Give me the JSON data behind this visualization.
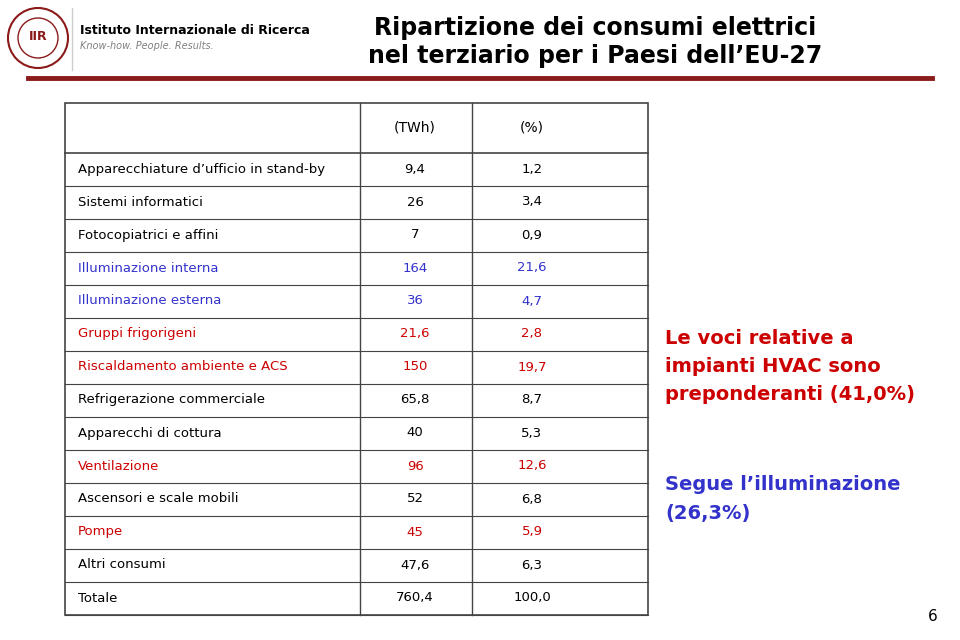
{
  "title_line1": "Ripartizione dei consumi elettrici",
  "title_line2": "nel terziario per i Paesi dell’EU-27",
  "header_col2": "(TWh)",
  "header_col3": "(%)",
  "rows": [
    {
      "label": "Apparecchiature d’ufficio in stand-by",
      "twh": "9,4",
      "pct": "1,2",
      "color": "black"
    },
    {
      "label": "Sistemi informatici",
      "twh": "26",
      "pct": "3,4",
      "color": "black"
    },
    {
      "label": "Fotocopiatrici e affini",
      "twh": "7",
      "pct": "0,9",
      "color": "black"
    },
    {
      "label": "Illuminazione interna",
      "twh": "164",
      "pct": "21,6",
      "color": "#3333cc"
    },
    {
      "label": "Illuminazione esterna",
      "twh": "36",
      "pct": "4,7",
      "color": "#3333cc"
    },
    {
      "label": "Gruppi frigorigeni",
      "twh": "21,6",
      "pct": "2,8",
      "color": "#cc0000"
    },
    {
      "label": "Riscaldamento ambiente e ACS",
      "twh": "150",
      "pct": "19,7",
      "color": "#cc0000"
    },
    {
      "label": "Refrigerazione commerciale",
      "twh": "65,8",
      "pct": "8,7",
      "color": "black"
    },
    {
      "label": "Apparecchi di cottura",
      "twh": "40",
      "pct": "5,3",
      "color": "black"
    },
    {
      "label": "Ventilazione",
      "twh": "96",
      "pct": "12,6",
      "color": "#cc0000"
    },
    {
      "label": "Ascensori e scale mobili",
      "twh": "52",
      "pct": "6,8",
      "color": "black"
    },
    {
      "label": "Pompe",
      "twh": "45",
      "pct": "5,9",
      "color": "#cc0000"
    },
    {
      "label": "Altri consumi",
      "twh": "47,6",
      "pct": "6,3",
      "color": "black"
    },
    {
      "label": "Totale",
      "twh": "760,4",
      "pct": "100,0",
      "color": "black"
    }
  ],
  "annotation_red": "Le voci relative a\nimpianti HVAC sono\npreponderanti (41,0%)",
  "annotation_blue": "Segue l’illuminazione\n(26,3%)",
  "annotation_red_color": "#cc0000",
  "annotation_blue_color": "#3333cc",
  "bg_color": "#ffffff",
  "header_line_color": "#8b1a1a",
  "table_border_color": "#444444",
  "page_number": "6",
  "logo_text": "Istituto Internazionale di Ricerca",
  "logo_subtext": "Know-how. People. Results."
}
